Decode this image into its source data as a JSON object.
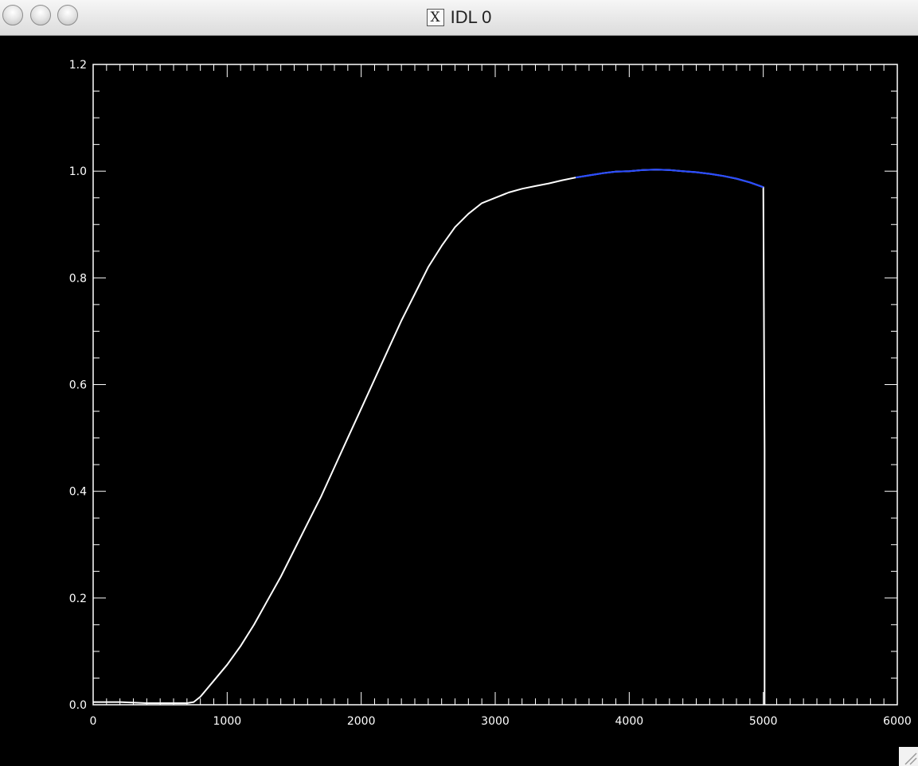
{
  "window": {
    "title": "IDL 0",
    "x_glyph": "X"
  },
  "icons": {
    "close": "circle-button",
    "minimize": "circle-button",
    "zoom": "circle-button",
    "resize": "resize-grip-icon"
  },
  "colors": {
    "background": "#000000",
    "axis": "#ffffff",
    "main_series": "#ffffff",
    "highlight_series": "#2a4cff"
  },
  "chart_data": {
    "type": "line",
    "title": "",
    "xlabel": "",
    "ylabel": "",
    "xlim": [
      0,
      6000
    ],
    "ylim": [
      0,
      1.2
    ],
    "x_ticks": [
      "0",
      "1000",
      "2000",
      "3000",
      "4000",
      "5000",
      "6000"
    ],
    "y_ticks": [
      "0.0",
      "0.2",
      "0.4",
      "0.6",
      "0.8",
      "1.0",
      "1.2"
    ],
    "grid": false,
    "series": [
      {
        "color": "#ffffff",
        "x": [
          0,
          200,
          400,
          600,
          700,
          750,
          800,
          850,
          900,
          1000,
          1100,
          1200,
          1300,
          1400,
          1500,
          1600,
          1700,
          1800,
          1900,
          2000,
          2100,
          2200,
          2300,
          2400,
          2500,
          2600,
          2700,
          2800,
          2900,
          3000,
          3100,
          3200,
          3300,
          3400,
          3500,
          3600,
          3700,
          3800,
          3900,
          4000,
          4100,
          4200,
          4300,
          4400,
          4500,
          4600,
          4700,
          4800,
          4900,
          5000,
          5010,
          5010
        ],
        "y": [
          0.005,
          0.005,
          0.003,
          0.003,
          0.003,
          0.005,
          0.015,
          0.03,
          0.045,
          0.075,
          0.11,
          0.15,
          0.195,
          0.24,
          0.29,
          0.34,
          0.39,
          0.445,
          0.5,
          0.555,
          0.61,
          0.665,
          0.72,
          0.77,
          0.82,
          0.86,
          0.895,
          0.92,
          0.94,
          0.95,
          0.96,
          0.967,
          0.972,
          0.977,
          0.983,
          0.988,
          0.992,
          0.996,
          0.999,
          1.0,
          1.002,
          1.003,
          1.002,
          1.0,
          0.998,
          0.995,
          0.991,
          0.986,
          0.979,
          0.97,
          0.48,
          0.0
        ]
      },
      {
        "color": "#2a4cff",
        "x": [
          3600,
          3700,
          3800,
          3900,
          4000,
          4100,
          4200,
          4300,
          4400,
          4500,
          4600,
          4700,
          4800,
          4900,
          5000
        ],
        "y": [
          0.988,
          0.992,
          0.996,
          0.999,
          1.0,
          1.002,
          1.003,
          1.002,
          1.0,
          0.998,
          0.995,
          0.991,
          0.986,
          0.979,
          0.97
        ]
      }
    ]
  }
}
